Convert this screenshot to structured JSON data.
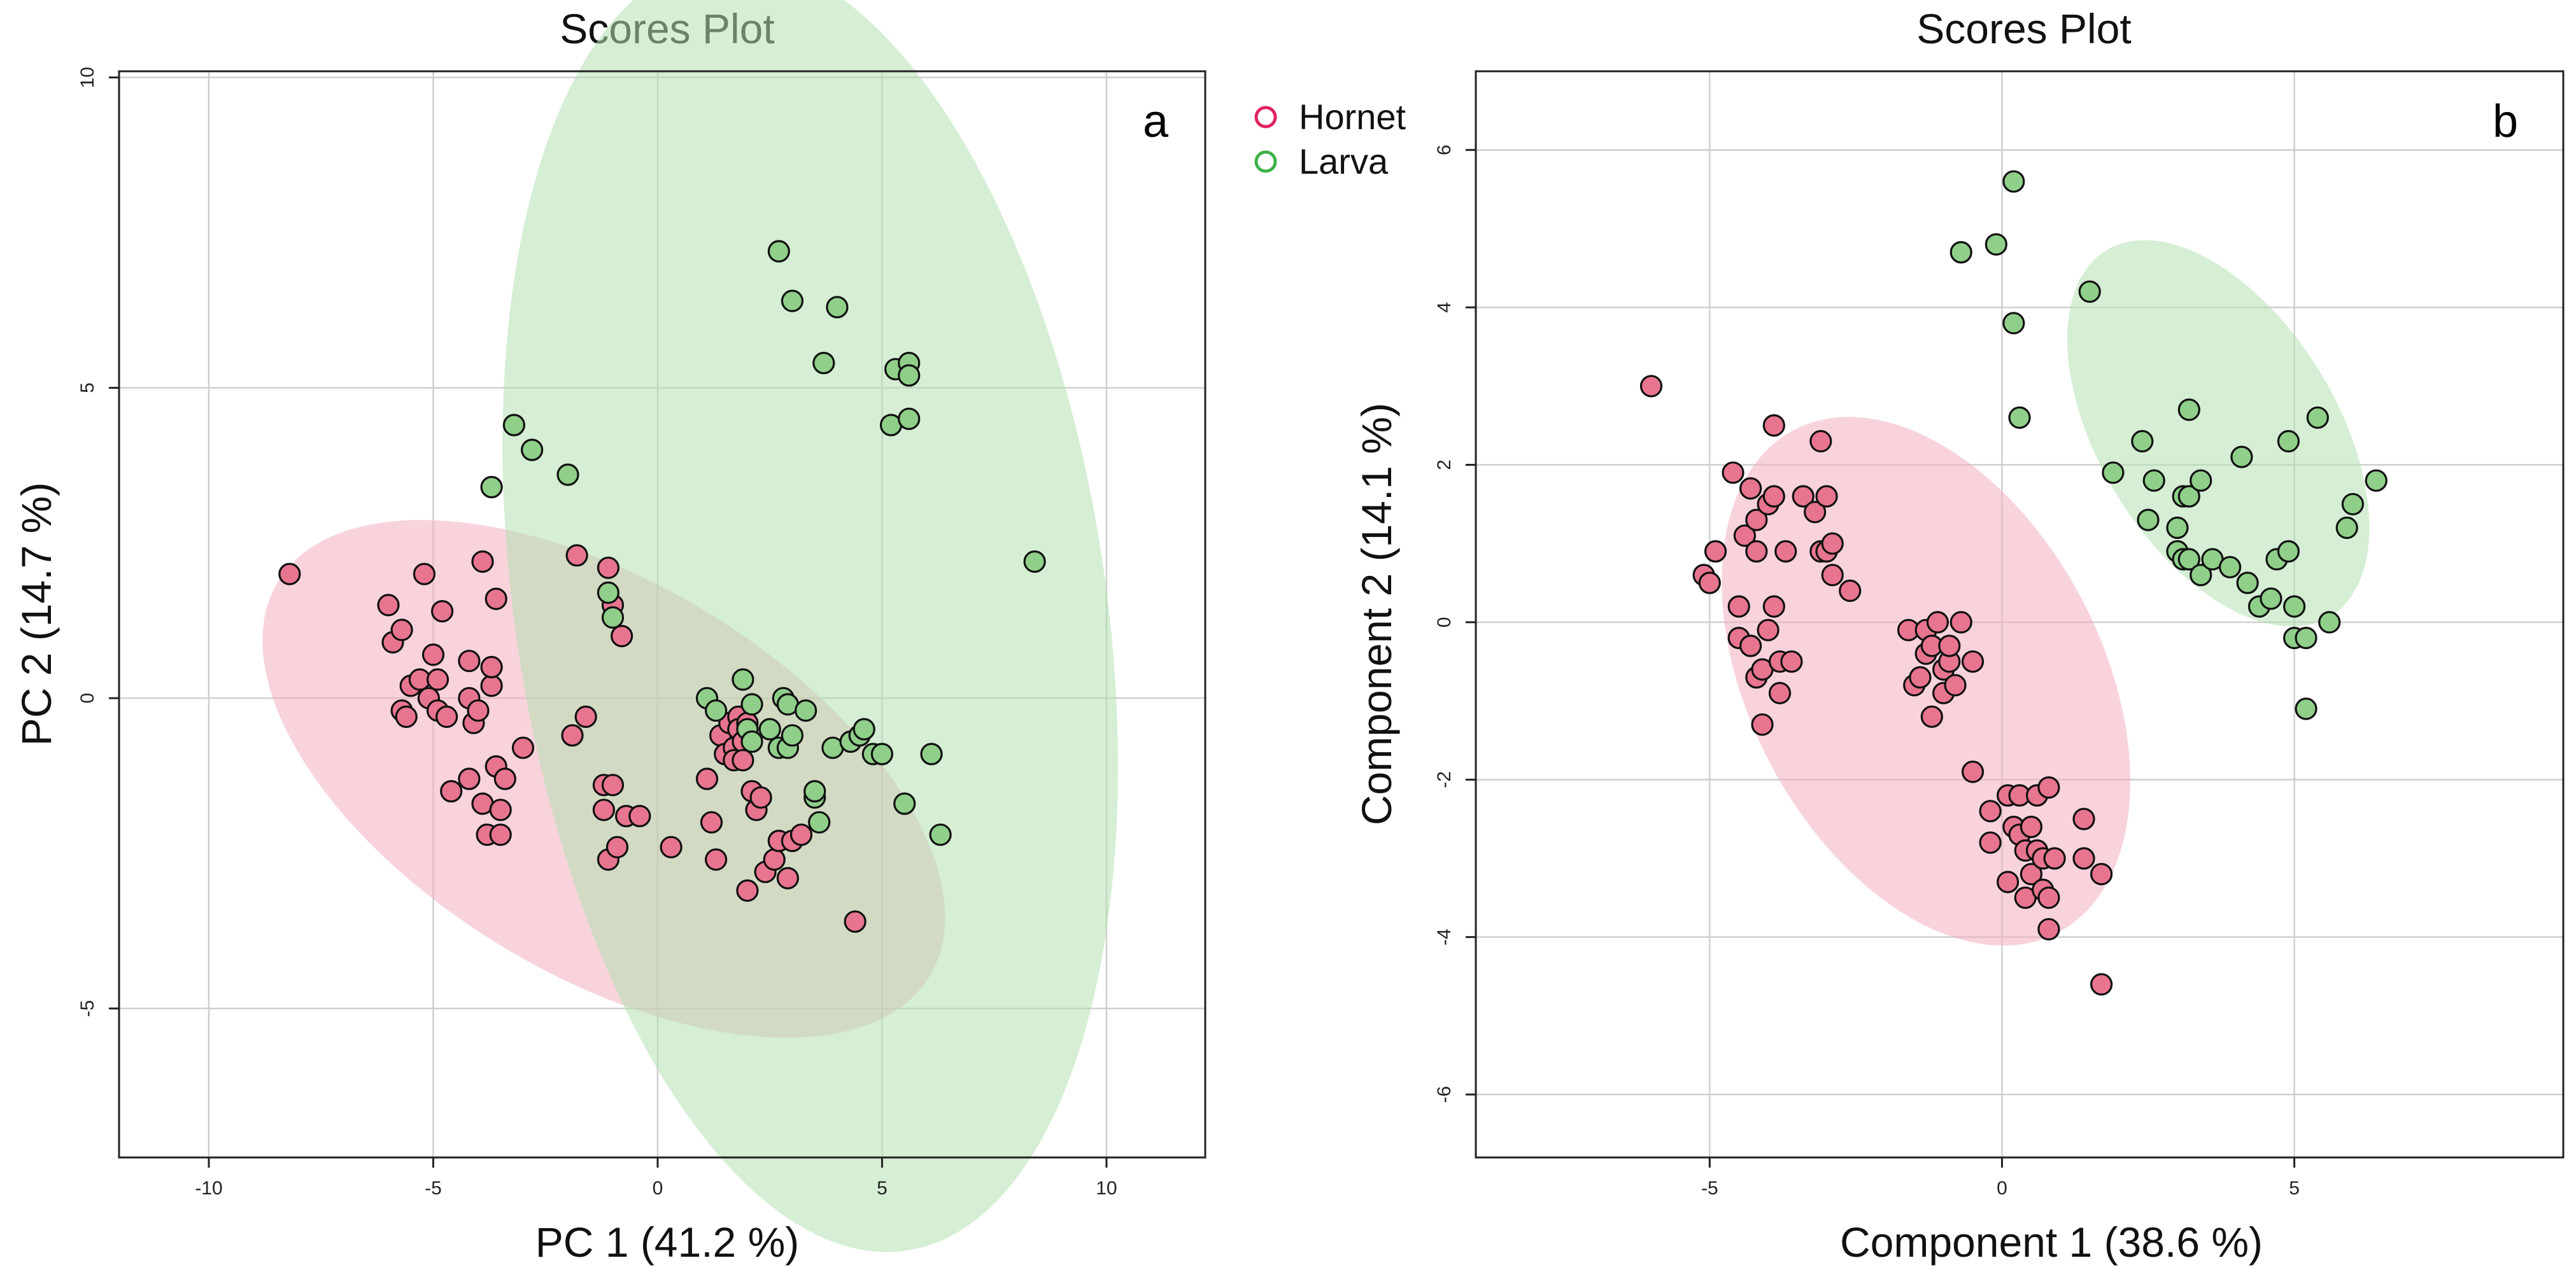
{
  "legend": {
    "items": [
      {
        "label": "Hornet",
        "color": "#e0245e"
      },
      {
        "label": "Larva",
        "color": "#3fb24a"
      }
    ]
  },
  "colors": {
    "hornet_fill": "#e8758f",
    "larva_fill": "#8fcf89",
    "hornet_ellipse": "#f2aebf",
    "larva_ellipse": "#b3e0b0"
  },
  "chart_data": [
    {
      "type": "scatter",
      "panel": "a",
      "title": "Scores Plot",
      "xlabel": "PC 1 (41.2 %)",
      "ylabel": "PC 2 (14.7 %)",
      "xlim": [
        -12,
        12.2
      ],
      "ylim": [
        -7.4,
        10.1
      ],
      "xticks": [
        -10,
        -5,
        0,
        5,
        10
      ],
      "xtick_labels": [
        "-10",
        "-5",
        "0",
        "5",
        "10"
      ],
      "yticks": [
        -5,
        0,
        5,
        10
      ],
      "ytick_labels": [
        "-5",
        "0",
        "5",
        "10"
      ],
      "grid": true,
      "ellipses": [
        {
          "group": "Hornet",
          "center": [
            -1.2,
            -1.3
          ],
          "rx": 16.0,
          "ry": 6.7,
          "angle_deg": -20
        },
        {
          "group": "Larva",
          "center": [
            3.4,
            1.5
          ],
          "rx": 13.0,
          "ry": 21.3,
          "angle_deg": 15
        }
      ],
      "series": [
        {
          "name": "Hornet",
          "points": [
            [
              -8.2,
              2.0
            ],
            [
              -6.0,
              1.5
            ],
            [
              -5.9,
              0.9
            ],
            [
              -5.7,
              1.1
            ],
            [
              -5.7,
              -0.2
            ],
            [
              -5.6,
              -0.3
            ],
            [
              -5.5,
              0.2
            ],
            [
              -5.3,
              0.3
            ],
            [
              -5.1,
              0.0
            ],
            [
              -5.2,
              2.0
            ],
            [
              -5.0,
              0.7
            ],
            [
              -4.9,
              0.3
            ],
            [
              -4.9,
              -0.2
            ],
            [
              -4.8,
              1.4
            ],
            [
              -4.7,
              -0.3
            ],
            [
              -4.6,
              -1.5
            ],
            [
              -4.2,
              -1.3
            ],
            [
              -4.2,
              0.6
            ],
            [
              -4.2,
              0.0
            ],
            [
              -4.1,
              -0.4
            ],
            [
              -4.0,
              -0.2
            ],
            [
              -3.9,
              2.2
            ],
            [
              -3.9,
              -1.7
            ],
            [
              -3.8,
              -2.2
            ],
            [
              -3.7,
              0.2
            ],
            [
              -3.7,
              0.5
            ],
            [
              -3.6,
              1.6
            ],
            [
              -3.6,
              -1.1
            ],
            [
              -3.5,
              -1.8
            ],
            [
              -3.5,
              -2.2
            ],
            [
              -3.4,
              -1.3
            ],
            [
              -3.0,
              -0.8
            ],
            [
              -1.8,
              2.3
            ],
            [
              -1.9,
              -0.6
            ],
            [
              -1.6,
              -0.3
            ],
            [
              -1.2,
              -1.4
            ],
            [
              -1.2,
              -1.8
            ],
            [
              -1.1,
              -2.6
            ],
            [
              -1.1,
              2.1
            ],
            [
              -1.0,
              1.5
            ],
            [
              -1.0,
              -1.4
            ],
            [
              -0.9,
              -2.4
            ],
            [
              -0.8,
              1.0
            ],
            [
              -0.7,
              -1.9
            ],
            [
              -0.4,
              -1.9
            ],
            [
              0.3,
              -2.4
            ],
            [
              1.1,
              -1.3
            ],
            [
              1.2,
              -2.0
            ],
            [
              1.3,
              -2.6
            ],
            [
              1.4,
              -0.6
            ],
            [
              1.5,
              -0.9
            ],
            [
              1.6,
              -0.4
            ],
            [
              1.7,
              -0.8
            ],
            [
              1.7,
              -1.0
            ],
            [
              1.8,
              -0.3
            ],
            [
              1.8,
              -0.5
            ],
            [
              1.9,
              -0.7
            ],
            [
              1.9,
              -1.0
            ],
            [
              2.0,
              -0.4
            ],
            [
              2.0,
              -3.1
            ],
            [
              2.1,
              -1.5
            ],
            [
              2.2,
              -1.8
            ],
            [
              2.3,
              -1.6
            ],
            [
              2.4,
              -2.8
            ],
            [
              2.6,
              -2.6
            ],
            [
              2.7,
              -2.3
            ],
            [
              2.9,
              -2.9
            ],
            [
              3.0,
              -2.3
            ],
            [
              3.2,
              -2.2
            ],
            [
              4.4,
              -3.6
            ]
          ]
        },
        {
          "name": "Larva",
          "points": [
            [
              2.7,
              7.2
            ],
            [
              3.0,
              6.4
            ],
            [
              4.0,
              6.3
            ],
            [
              3.7,
              5.4
            ],
            [
              5.3,
              5.3
            ],
            [
              5.6,
              5.4
            ],
            [
              5.6,
              5.2
            ],
            [
              5.2,
              4.4
            ],
            [
              5.6,
              4.5
            ],
            [
              8.4,
              2.2
            ],
            [
              -3.2,
              4.4
            ],
            [
              -2.8,
              4.0
            ],
            [
              -3.7,
              3.4
            ],
            [
              -2.0,
              3.6
            ],
            [
              -1.1,
              1.7
            ],
            [
              -1.0,
              1.3
            ],
            [
              1.1,
              0.0
            ],
            [
              1.3,
              -0.2
            ],
            [
              1.9,
              0.3
            ],
            [
              2.0,
              -0.5
            ],
            [
              2.1,
              -0.7
            ],
            [
              2.1,
              -0.1
            ],
            [
              2.5,
              -0.5
            ],
            [
              2.7,
              -0.8
            ],
            [
              2.8,
              0.0
            ],
            [
              2.9,
              -0.1
            ],
            [
              2.9,
              -0.8
            ],
            [
              3.0,
              -0.6
            ],
            [
              3.3,
              -0.2
            ],
            [
              3.5,
              -1.6
            ],
            [
              3.6,
              -2.0
            ],
            [
              3.5,
              -1.5
            ],
            [
              3.9,
              -0.8
            ],
            [
              4.3,
              -0.7
            ],
            [
              4.5,
              -0.6
            ],
            [
              4.6,
              -0.5
            ],
            [
              4.8,
              -0.9
            ],
            [
              5.0,
              -0.9
            ],
            [
              5.5,
              -1.7
            ],
            [
              6.1,
              -0.9
            ],
            [
              6.3,
              -2.2
            ]
          ]
        }
      ]
    },
    {
      "type": "scatter",
      "panel": "b",
      "title": "Scores Plot",
      "xlabel": "Component 1 (38.6 %)",
      "ylabel": "Component 2 (14.1 %)",
      "xlim": [
        -9.0,
        9.6
      ],
      "ylim": [
        -6.8,
        7.0
      ],
      "xticks": [
        -5,
        0,
        5
      ],
      "xtick_labels": [
        "-5",
        "0",
        "5"
      ],
      "yticks": [
        -6,
        -4,
        -2,
        0,
        2,
        4,
        6
      ],
      "ytick_labels": [
        "-6",
        "-4",
        "-2",
        "0",
        "2",
        "4",
        "6"
      ],
      "grid": true,
      "ellipses": [
        {
          "group": "Hornet",
          "center": [
            -1.3,
            -0.75
          ],
          "rx": 5.4,
          "ry": 8.05,
          "angle_deg": 48
        },
        {
          "group": "Larva",
          "center": [
            3.7,
            2.4
          ],
          "rx": 3.6,
          "ry": 6.15,
          "angle_deg": 48
        }
      ],
      "series": [
        {
          "name": "Hornet",
          "points": [
            [
              -6.0,
              3.0
            ],
            [
              -5.1,
              0.6
            ],
            [
              -5.0,
              0.5
            ],
            [
              -4.9,
              0.9
            ],
            [
              -4.6,
              1.9
            ],
            [
              -4.5,
              0.2
            ],
            [
              -4.5,
              -0.2
            ],
            [
              -4.4,
              1.1
            ],
            [
              -4.3,
              1.7
            ],
            [
              -4.3,
              -0.3
            ],
            [
              -4.2,
              -0.7
            ],
            [
              -4.2,
              0.9
            ],
            [
              -4.2,
              1.3
            ],
            [
              -4.1,
              -1.3
            ],
            [
              -4.1,
              -0.6
            ],
            [
              -4.0,
              1.5
            ],
            [
              -4.0,
              -0.1
            ],
            [
              -3.9,
              2.5
            ],
            [
              -3.9,
              1.6
            ],
            [
              -3.9,
              0.2
            ],
            [
              -3.8,
              -0.9
            ],
            [
              -3.8,
              -0.5
            ],
            [
              -3.7,
              0.9
            ],
            [
              -3.6,
              -0.5
            ],
            [
              -3.4,
              1.6
            ],
            [
              -3.2,
              1.4
            ],
            [
              -3.1,
              2.3
            ],
            [
              -3.1,
              0.9
            ],
            [
              -3.0,
              0.9
            ],
            [
              -3.0,
              1.6
            ],
            [
              -2.9,
              0.6
            ],
            [
              -2.9,
              1.0
            ],
            [
              -2.6,
              0.4
            ],
            [
              -1.6,
              -0.1
            ],
            [
              -1.5,
              -0.8
            ],
            [
              -1.4,
              -0.7
            ],
            [
              -1.3,
              -0.4
            ],
            [
              -1.3,
              -0.1
            ],
            [
              -1.2,
              -1.2
            ],
            [
              -1.2,
              -0.3
            ],
            [
              -1.1,
              0.0
            ],
            [
              -1.0,
              -0.6
            ],
            [
              -1.0,
              -0.9
            ],
            [
              -0.9,
              -0.5
            ],
            [
              -0.9,
              -0.3
            ],
            [
              -0.8,
              -0.8
            ],
            [
              -0.7,
              0.0
            ],
            [
              -0.5,
              -1.9
            ],
            [
              -0.5,
              -0.5
            ],
            [
              -0.2,
              -2.8
            ],
            [
              -0.2,
              -2.4
            ],
            [
              0.1,
              -2.2
            ],
            [
              0.1,
              -3.3
            ],
            [
              0.2,
              -2.6
            ],
            [
              0.3,
              -2.2
            ],
            [
              0.3,
              -2.7
            ],
            [
              0.4,
              -3.5
            ],
            [
              0.4,
              -2.9
            ],
            [
              0.5,
              -2.6
            ],
            [
              0.5,
              -3.2
            ],
            [
              0.6,
              -2.2
            ],
            [
              0.6,
              -2.9
            ],
            [
              0.7,
              -3.4
            ],
            [
              0.7,
              -3.0
            ],
            [
              0.8,
              -3.9
            ],
            [
              0.8,
              -2.1
            ],
            [
              0.8,
              -3.5
            ],
            [
              0.9,
              -3.0
            ],
            [
              1.4,
              -2.5
            ],
            [
              1.4,
              -3.0
            ],
            [
              1.7,
              -3.2
            ],
            [
              1.7,
              -4.6
            ]
          ]
        },
        {
          "name": "Larva",
          "points": [
            [
              0.2,
              5.6
            ],
            [
              -0.7,
              4.7
            ],
            [
              -0.1,
              4.8
            ],
            [
              1.5,
              4.2
            ],
            [
              0.2,
              3.8
            ],
            [
              0.3,
              2.6
            ],
            [
              2.4,
              2.3
            ],
            [
              1.9,
              1.9
            ],
            [
              2.5,
              1.3
            ],
            [
              2.6,
              1.8
            ],
            [
              3.0,
              1.2
            ],
            [
              3.1,
              1.6
            ],
            [
              3.2,
              2.7
            ],
            [
              3.2,
              1.6
            ],
            [
              3.4,
              1.8
            ],
            [
              3.0,
              0.9
            ],
            [
              3.1,
              0.8
            ],
            [
              3.2,
              0.8
            ],
            [
              3.4,
              0.6
            ],
            [
              3.6,
              0.8
            ],
            [
              3.9,
              0.7
            ],
            [
              4.1,
              2.1
            ],
            [
              4.2,
              0.5
            ],
            [
              4.4,
              0.2
            ],
            [
              4.6,
              0.3
            ],
            [
              4.7,
              0.8
            ],
            [
              4.9,
              0.9
            ],
            [
              4.9,
              2.3
            ],
            [
              5.0,
              0.2
            ],
            [
              5.0,
              -0.2
            ],
            [
              5.2,
              -0.2
            ],
            [
              5.2,
              -1.1
            ],
            [
              5.4,
              2.6
            ],
            [
              5.6,
              0.0
            ],
            [
              5.9,
              1.2
            ],
            [
              6.0,
              1.5
            ],
            [
              6.4,
              1.8
            ]
          ]
        }
      ]
    }
  ]
}
